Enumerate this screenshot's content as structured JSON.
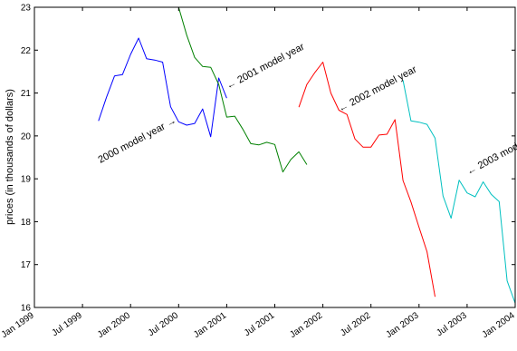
{
  "chart_data": {
    "type": "line",
    "title": "",
    "xlabel": "",
    "ylabel": "prices (in thousands of dollars)",
    "xlim": [
      "1999-01",
      "2004-01"
    ],
    "ylim": [
      16,
      23
    ],
    "x_ticks": [
      {
        "label": "Jan 1999",
        "date": "1999-01"
      },
      {
        "label": "Jul 1999",
        "date": "1999-07"
      },
      {
        "label": "Jan 2000",
        "date": "2000-01"
      },
      {
        "label": "Jul 2000",
        "date": "2000-07"
      },
      {
        "label": "Jan 2001",
        "date": "2001-01"
      },
      {
        "label": "Jul 2001",
        "date": "2001-07"
      },
      {
        "label": "Jan 2002",
        "date": "2002-01"
      },
      {
        "label": "Jul 2002",
        "date": "2002-07"
      },
      {
        "label": "Jan 2003",
        "date": "2003-01"
      },
      {
        "label": "Jul 2003",
        "date": "2003-07"
      },
      {
        "label": "Jan 2004",
        "date": "2004-01"
      }
    ],
    "y_ticks": [
      16,
      17,
      18,
      19,
      20,
      21,
      22,
      23
    ],
    "grid": false,
    "series": [
      {
        "color": "#0000ff",
        "points": [
          [
            "1999-09",
            20.35
          ],
          [
            "1999-10",
            20.9
          ],
          [
            "1999-11",
            21.4
          ],
          [
            "1999-12",
            21.43
          ],
          [
            "2000-01",
            21.9
          ],
          [
            "2000-02",
            22.28
          ],
          [
            "2000-03",
            21.8
          ],
          [
            "2000-04",
            21.77
          ],
          [
            "2000-05",
            21.72
          ],
          [
            "2000-06",
            20.68
          ],
          [
            "2000-07",
            20.33
          ],
          [
            "2000-08",
            20.25
          ],
          [
            "2000-09",
            20.29
          ],
          [
            "2000-10",
            20.63
          ],
          [
            "2000-11",
            19.98
          ],
          [
            "2000-12",
            21.35
          ],
          [
            "2001-01",
            20.88
          ]
        ]
      },
      {
        "color": "#008000",
        "points": [
          [
            "2000-07",
            23.0
          ],
          [
            "2000-08",
            22.35
          ],
          [
            "2000-09",
            21.83
          ],
          [
            "2000-10",
            21.62
          ],
          [
            "2000-11",
            21.6
          ],
          [
            "2000-12",
            21.2
          ],
          [
            "2001-01",
            20.44
          ],
          [
            "2001-02",
            20.46
          ],
          [
            "2001-03",
            20.16
          ],
          [
            "2001-04",
            19.82
          ],
          [
            "2001-05",
            19.79
          ],
          [
            "2001-06",
            19.85
          ],
          [
            "2001-07",
            19.8
          ],
          [
            "2001-08",
            19.16
          ],
          [
            "2001-09",
            19.45
          ],
          [
            "2001-10",
            19.63
          ],
          [
            "2001-11",
            19.33
          ]
        ]
      },
      {
        "color": "#ff0000",
        "points": [
          [
            "2001-10",
            20.67
          ],
          [
            "2001-11",
            21.2
          ],
          [
            "2001-12",
            21.48
          ],
          [
            "2002-01",
            21.72
          ],
          [
            "2002-02",
            21.0
          ],
          [
            "2002-03",
            20.6
          ],
          [
            "2002-04",
            20.5
          ],
          [
            "2002-05",
            19.93
          ],
          [
            "2002-06",
            19.74
          ],
          [
            "2002-07",
            19.74
          ],
          [
            "2002-08",
            20.02
          ],
          [
            "2002-09",
            20.04
          ],
          [
            "2002-10",
            20.38
          ],
          [
            "2002-11",
            18.96
          ],
          [
            "2002-12",
            18.46
          ],
          [
            "2003-01",
            17.87
          ],
          [
            "2003-02",
            17.3
          ],
          [
            "2003-03",
            16.25
          ]
        ]
      },
      {
        "color": "#00c0c0",
        "points": [
          [
            "2002-11",
            21.3
          ],
          [
            "2002-12",
            20.35
          ],
          [
            "2003-01",
            20.32
          ],
          [
            "2003-02",
            20.27
          ],
          [
            "2003-03",
            19.95
          ],
          [
            "2003-04",
            18.6
          ],
          [
            "2003-05",
            18.08
          ],
          [
            "2003-06",
            18.97
          ],
          [
            "2003-07",
            18.67
          ],
          [
            "2003-08",
            18.58
          ],
          [
            "2003-09",
            18.93
          ],
          [
            "2003-10",
            18.64
          ],
          [
            "2003-11",
            18.47
          ],
          [
            "2003-12",
            16.62
          ],
          [
            "2004-01",
            16.1
          ]
        ]
      }
    ],
    "annotations": [
      {
        "text": "2000 model year",
        "arrow": "→",
        "arrow_position": "after",
        "points_to": [
          "2000-07",
          20.42
        ]
      },
      {
        "text": "2001 model year",
        "arrow": "←",
        "arrow_position": "before",
        "points_to": [
          "2001-01",
          21.15
        ]
      },
      {
        "text": "2002 model year",
        "arrow": "←",
        "arrow_position": "before",
        "points_to": [
          "2002-03",
          20.62
        ]
      },
      {
        "text": "2003 model year",
        "arrow": "←",
        "arrow_position": "before",
        "points_to": [
          "2003-07",
          19.15
        ]
      }
    ]
  }
}
